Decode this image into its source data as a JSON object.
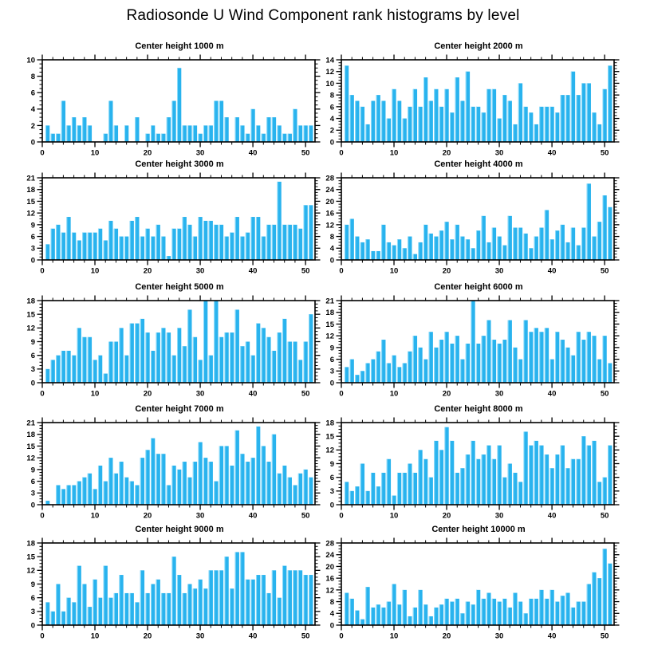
{
  "title": "Radiosonde U Wind Component rank histograms by level",
  "colors": {
    "bar": "#29b3ee",
    "bar_highlight": "#8fdcfa",
    "axis": "#000000",
    "background": "#ffffff"
  },
  "layout": {
    "grid": "5 rows x 2 columns",
    "legend": "none",
    "grid_lines": "off"
  },
  "chart_data": [
    {
      "type": "bar",
      "title": "Center height 1000 m",
      "xlabel": "",
      "ylabel": "",
      "xlim": [
        0,
        51.8
      ],
      "ylim": [
        0,
        10
      ],
      "x_ticks": [
        0,
        10,
        20,
        30,
        40,
        50
      ],
      "y_ticks": [
        0,
        2,
        4,
        6,
        8,
        10
      ],
      "ystep": 2,
      "x_start": 1,
      "values": [
        2,
        1,
        1,
        5,
        2,
        3,
        2,
        3,
        2,
        0,
        0,
        1,
        5,
        2,
        0,
        2,
        0,
        3,
        0,
        1,
        2,
        1,
        1,
        3,
        5,
        9,
        2,
        2,
        2,
        1,
        2,
        2,
        5,
        5,
        3,
        0,
        3,
        2,
        1,
        4,
        2,
        1,
        3,
        3,
        2,
        1,
        1,
        4,
        2,
        2,
        2
      ]
    },
    {
      "type": "bar",
      "title": "Center height 2000 m",
      "xlabel": "",
      "ylabel": "",
      "xlim": [
        0,
        51.8
      ],
      "ylim": [
        0,
        14
      ],
      "x_ticks": [
        0,
        10,
        20,
        30,
        40,
        50
      ],
      "y_ticks": [
        0,
        2,
        4,
        6,
        8,
        10,
        12,
        14
      ],
      "ystep": 2,
      "x_start": 1,
      "values": [
        13,
        8,
        7,
        6,
        3,
        7,
        8,
        7,
        4,
        9,
        7,
        4,
        6,
        9,
        6,
        11,
        7,
        9,
        6,
        9,
        5,
        11,
        7,
        12,
        6,
        6,
        5,
        9,
        9,
        4,
        8,
        7,
        3,
        10,
        6,
        5,
        3,
        6,
        6,
        6,
        5,
        8,
        8,
        12,
        8,
        10,
        10,
        5,
        3,
        9,
        13
      ]
    },
    {
      "type": "bar",
      "title": "Center height 3000 m",
      "xlabel": "",
      "ylabel": "",
      "xlim": [
        0,
        51.8
      ],
      "ylim": [
        0,
        21
      ],
      "x_ticks": [
        0,
        10,
        20,
        30,
        40,
        50
      ],
      "y_ticks": [
        0,
        3,
        6,
        9,
        12,
        15,
        18,
        21
      ],
      "ystep": 3,
      "x_start": 1,
      "values": [
        4,
        8,
        9,
        7,
        11,
        7,
        5,
        7,
        7,
        7,
        8,
        5,
        10,
        8,
        6,
        6,
        10,
        11,
        6,
        8,
        6,
        9,
        6,
        1,
        8,
        8,
        11,
        9,
        6,
        11,
        10,
        10,
        9,
        9,
        6,
        7,
        11,
        6,
        7,
        11,
        11,
        6,
        9,
        9,
        20,
        9,
        9,
        9,
        8,
        14,
        14
      ]
    },
    {
      "type": "bar",
      "title": "Center height 4000 m",
      "xlabel": "",
      "ylabel": "",
      "xlim": [
        0,
        51.8
      ],
      "ylim": [
        0,
        28
      ],
      "x_ticks": [
        0,
        10,
        20,
        30,
        40,
        50
      ],
      "y_ticks": [
        0,
        4,
        8,
        12,
        16,
        20,
        24,
        28
      ],
      "ystep": 4,
      "x_start": 1,
      "values": [
        12,
        14,
        8,
        6,
        7,
        3,
        3,
        12,
        6,
        5,
        7,
        4,
        8,
        2,
        6,
        12,
        9,
        8,
        10,
        13,
        7,
        12,
        8,
        7,
        4,
        10,
        15,
        6,
        11,
        8,
        5,
        15,
        11,
        11,
        9,
        4,
        8,
        11,
        17,
        7,
        10,
        12,
        6,
        11,
        5,
        11,
        26,
        8,
        13,
        22,
        18
      ]
    },
    {
      "type": "bar",
      "title": "Center height 5000 m",
      "xlabel": "",
      "ylabel": "",
      "xlim": [
        0,
        51.8
      ],
      "ylim": [
        0,
        18
      ],
      "x_ticks": [
        0,
        10,
        20,
        30,
        40,
        50
      ],
      "y_ticks": [
        0,
        3,
        6,
        9,
        12,
        15,
        18
      ],
      "ystep": 3,
      "x_start": 1,
      "values": [
        3,
        5,
        6,
        7,
        7,
        6,
        12,
        10,
        10,
        5,
        6,
        2,
        9,
        9,
        12,
        6,
        13,
        13,
        14,
        11,
        7,
        11,
        12,
        11,
        6,
        12,
        8,
        16,
        10,
        5,
        18,
        6,
        18,
        10,
        11,
        11,
        16,
        8,
        9,
        6,
        13,
        12,
        10,
        7,
        11,
        14,
        9,
        9,
        5,
        9,
        15
      ]
    },
    {
      "type": "bar",
      "title": "Center height 6000 m",
      "xlabel": "",
      "ylabel": "",
      "xlim": [
        0,
        51.8
      ],
      "ylim": [
        0,
        21
      ],
      "x_ticks": [
        0,
        10,
        20,
        30,
        40,
        50
      ],
      "y_ticks": [
        0,
        3,
        6,
        9,
        12,
        15,
        18,
        21
      ],
      "ystep": 3,
      "x_start": 1,
      "values": [
        4,
        6,
        2,
        3,
        5,
        6,
        8,
        11,
        5,
        7,
        4,
        5,
        8,
        12,
        9,
        6,
        13,
        9,
        11,
        13,
        10,
        12,
        6,
        10,
        21,
        10,
        12,
        16,
        11,
        10,
        11,
        16,
        9,
        6,
        16,
        13,
        14,
        13,
        14,
        6,
        13,
        11,
        9,
        7,
        13,
        11,
        13,
        12,
        6,
        12,
        5
      ]
    },
    {
      "type": "bar",
      "title": "Center height 7000 m",
      "xlabel": "",
      "ylabel": "",
      "xlim": [
        0,
        51.8
      ],
      "ylim": [
        0,
        21
      ],
      "x_ticks": [
        0,
        10,
        20,
        30,
        40,
        50
      ],
      "y_ticks": [
        0,
        3,
        6,
        9,
        12,
        15,
        18,
        21
      ],
      "ystep": 3,
      "x_start": 1,
      "values": [
        1,
        0,
        5,
        4,
        5,
        5,
        6,
        7,
        8,
        4,
        10,
        6,
        12,
        8,
        11,
        7,
        6,
        5,
        12,
        14,
        17,
        13,
        13,
        5,
        10,
        9,
        11,
        7,
        11,
        16,
        12,
        11,
        6,
        15,
        15,
        10,
        19,
        13,
        11,
        12,
        20,
        15,
        11,
        18,
        8,
        10,
        7,
        5,
        8,
        9,
        7
      ]
    },
    {
      "type": "bar",
      "title": "Center height 8000 m",
      "xlabel": "",
      "ylabel": "",
      "xlim": [
        0,
        51.8
      ],
      "ylim": [
        0,
        18
      ],
      "x_ticks": [
        0,
        10,
        20,
        30,
        40,
        50
      ],
      "y_ticks": [
        0,
        3,
        6,
        9,
        12,
        15,
        18
      ],
      "ystep": 3,
      "x_start": 1,
      "values": [
        5,
        3,
        4,
        9,
        3,
        7,
        4,
        7,
        10,
        2,
        7,
        7,
        9,
        7,
        12,
        10,
        6,
        14,
        12,
        17,
        14,
        7,
        8,
        11,
        14,
        10,
        11,
        13,
        10,
        13,
        6,
        9,
        7,
        5,
        16,
        13,
        14,
        13,
        11,
        8,
        11,
        13,
        8,
        10,
        10,
        15,
        13,
        14,
        5,
        6,
        13
      ]
    },
    {
      "type": "bar",
      "title": "Center height 9000 m",
      "xlabel": "",
      "ylabel": "",
      "xlim": [
        0,
        51.8
      ],
      "ylim": [
        0,
        18
      ],
      "x_ticks": [
        0,
        10,
        20,
        30,
        40,
        50
      ],
      "y_ticks": [
        0,
        3,
        6,
        9,
        12,
        15,
        18
      ],
      "ystep": 3,
      "x_start": 1,
      "values": [
        5,
        3,
        9,
        3,
        6,
        5,
        13,
        9,
        4,
        10,
        6,
        13,
        6,
        7,
        11,
        7,
        7,
        5,
        12,
        7,
        9,
        10,
        7,
        7,
        15,
        11,
        7,
        9,
        8,
        10,
        8,
        12,
        12,
        12,
        15,
        8,
        16,
        16,
        10,
        10,
        11,
        11,
        7,
        12,
        6,
        13,
        12,
        12,
        12,
        11,
        11
      ]
    },
    {
      "type": "bar",
      "title": "Center height 10000 m",
      "xlabel": "",
      "ylabel": "",
      "xlim": [
        0,
        51.8
      ],
      "ylim": [
        0,
        28
      ],
      "x_ticks": [
        0,
        10,
        20,
        30,
        40,
        50
      ],
      "y_ticks": [
        0,
        4,
        8,
        12,
        16,
        20,
        24,
        28
      ],
      "ystep": 4,
      "x_start": 1,
      "values": [
        11,
        9,
        5,
        2,
        13,
        6,
        7,
        6,
        8,
        14,
        7,
        12,
        3,
        6,
        12,
        7,
        3,
        6,
        7,
        9,
        8,
        9,
        4,
        8,
        7,
        12,
        9,
        11,
        9,
        8,
        9,
        6,
        11,
        8,
        4,
        9,
        9,
        12,
        9,
        12,
        8,
        10,
        11,
        6,
        8,
        8,
        14,
        18,
        16,
        26,
        21
      ]
    }
  ]
}
